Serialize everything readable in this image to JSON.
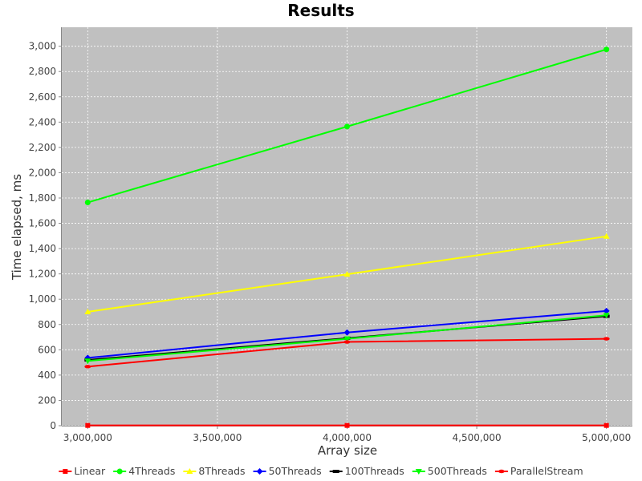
{
  "chart_data": {
    "type": "line",
    "title": "Results",
    "xlabel": "Array size",
    "ylabel": "Time elapsed, ms",
    "x": [
      3000000,
      4000000,
      5000000
    ],
    "xlim": [
      2900000,
      5100000
    ],
    "ylim": [
      0,
      3150
    ],
    "x_ticks": [
      3000000,
      3500000,
      4000000,
      4500000,
      5000000
    ],
    "x_tick_labels": [
      "3,000,000",
      "3,500,000",
      "4,000,000",
      "4,500,000",
      "5,000,000"
    ],
    "y_ticks": [
      0,
      200,
      400,
      600,
      800,
      1000,
      1200,
      1400,
      1600,
      1800,
      2000,
      2200,
      2400,
      2600,
      2800,
      3000
    ],
    "y_tick_labels": [
      "0",
      "200",
      "400",
      "600",
      "800",
      "1,000",
      "1,200",
      "1,400",
      "1,600",
      "1,800",
      "2,000",
      "2,200",
      "2,400",
      "2,600",
      "2,800",
      "3,000"
    ],
    "grid": true,
    "plot_background": "#c0c0c0",
    "legend_position": "bottom",
    "series": [
      {
        "name": "Linear",
        "values": [
          2,
          2,
          2
        ],
        "color": "#ff0000",
        "marker": "square"
      },
      {
        "name": "4Threads",
        "values": [
          1765,
          2365,
          2975
        ],
        "color": "#00ff00",
        "marker": "circle"
      },
      {
        "name": "8Threads",
        "values": [
          900,
          1197,
          1497
        ],
        "color": "#ffff00",
        "marker": "triangle-up"
      },
      {
        "name": "50Threads",
        "values": [
          536,
          737,
          907
        ],
        "color": "#0000ff",
        "marker": "diamond"
      },
      {
        "name": "100Threads",
        "values": [
          520,
          692,
          865
        ],
        "color": "#000000",
        "marker": "rect"
      },
      {
        "name": "500Threads",
        "values": [
          512,
          687,
          873
        ],
        "color": "#00ff00",
        "marker": "triangle-down"
      },
      {
        "name": "ParallelStream",
        "values": [
          467,
          662,
          687
        ],
        "color": "#ff0000",
        "marker": "ellipse"
      }
    ]
  }
}
